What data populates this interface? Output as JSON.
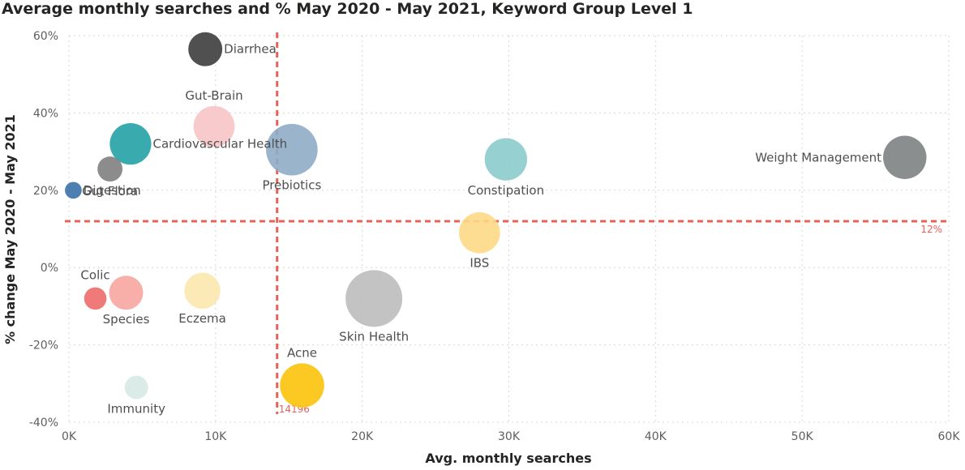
{
  "chart_data": {
    "type": "scatter",
    "title": "Average monthly searches and % May 2020 - May 2021, Keyword Group Level 1",
    "xlabel": "Avg. monthly searches",
    "ylabel": "% change May 2020 - May 2021",
    "xlim": [
      0,
      60000
    ],
    "ylim": [
      -40,
      60
    ],
    "x_ticks": [
      {
        "value": 0,
        "label": "0K"
      },
      {
        "value": 10000,
        "label": "10K"
      },
      {
        "value": 20000,
        "label": "20K"
      },
      {
        "value": 30000,
        "label": "30K"
      },
      {
        "value": 40000,
        "label": "40K"
      },
      {
        "value": 50000,
        "label": "50K"
      },
      {
        "value": 60000,
        "label": "60K"
      }
    ],
    "y_ticks": [
      {
        "value": 60,
        "label": "60%"
      },
      {
        "value": 40,
        "label": "40%"
      },
      {
        "value": 20,
        "label": "20%"
      },
      {
        "value": 0,
        "label": "0%"
      },
      {
        "value": -20,
        "label": "-20%"
      },
      {
        "value": -40,
        "label": "-40%"
      }
    ],
    "grid": true,
    "reference_lines": [
      {
        "axis": "x",
        "value": 14196,
        "label": "14196",
        "color": "#e8615b"
      },
      {
        "axis": "y",
        "value": 12,
        "label": "12%",
        "color": "#e8615b"
      }
    ],
    "points": [
      {
        "name": "Diarrhea",
        "x": 9300,
        "y": 56.5,
        "size": 7400,
        "color": "#3d3d3d",
        "label_pos": "right"
      },
      {
        "name": "Gut-Brain",
        "x": 9900,
        "y": 36.5,
        "size": 10800,
        "color": "#f7c4c6",
        "label_pos": "above"
      },
      {
        "name": "Cardiovascular Health",
        "x": 4200,
        "y": 32,
        "size": 11000,
        "color": "#23a2a6",
        "label_pos": "right"
      },
      {
        "name": "Gut Flora",
        "x": 2800,
        "y": 25.5,
        "size": 4000,
        "color": "#7f7f7f",
        "label_pos": "below"
      },
      {
        "name": "Digestion",
        "x": 300,
        "y": 20,
        "size": 1800,
        "color": "#3a72a8",
        "label_pos": "right"
      },
      {
        "name": "Prebiotics",
        "x": 15200,
        "y": 30.5,
        "size": 17000,
        "color": "#8facc6",
        "label_pos": "below"
      },
      {
        "name": "Constipation",
        "x": 29800,
        "y": 28,
        "size": 11500,
        "color": "#8bcbcb",
        "label_pos": "below"
      },
      {
        "name": "Weight Management",
        "x": 57000,
        "y": 28.5,
        "size": 12000,
        "color": "#7d8283",
        "label_pos": "left"
      },
      {
        "name": "IBS",
        "x": 28000,
        "y": 9,
        "size": 10800,
        "color": "#fdd985",
        "label_pos": "below"
      },
      {
        "name": "Colic",
        "x": 1800,
        "y": -8,
        "size": 3200,
        "color": "#ee6a6a",
        "label_pos": "above-left"
      },
      {
        "name": "Species",
        "x": 3900,
        "y": -6.5,
        "size": 7400,
        "color": "#f7a5a0",
        "label_pos": "below"
      },
      {
        "name": "Eczema",
        "x": 9100,
        "y": -6,
        "size": 8300,
        "color": "#fce8ae",
        "label_pos": "below"
      },
      {
        "name": "Skin Health",
        "x": 20800,
        "y": -8,
        "size": 20600,
        "color": "#bcbcbc",
        "label_pos": "below"
      },
      {
        "name": "Acne",
        "x": 15900,
        "y": -30.5,
        "size": 12500,
        "color": "#fcc30b",
        "label_pos": "above"
      },
      {
        "name": "Immunity",
        "x": 4600,
        "y": -31,
        "size": 3500,
        "color": "#d7eae5",
        "label_pos": "below"
      }
    ]
  }
}
